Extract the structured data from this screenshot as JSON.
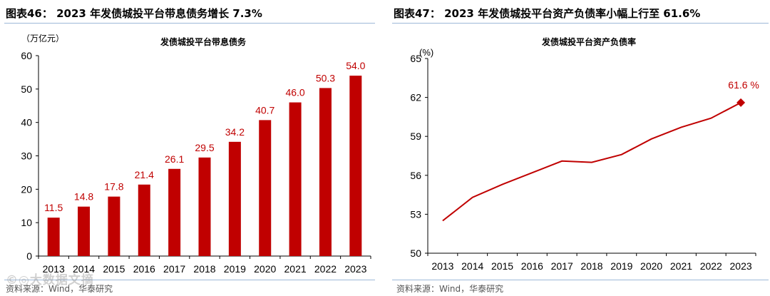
{
  "figures": {
    "left": {
      "header": "图表46： 2023 年发债城投平台带息债务增长 7.3%",
      "source": "资料来源：Wind，华泰研究"
    },
    "right": {
      "header": "图表47： 2023 年发债城投平台资产负债率小幅上行至 61.6%",
      "source": "资料来源：Wind，华泰研究"
    }
  },
  "watermark": "©◎大数据文摘",
  "colors": {
    "accent": "#c00000",
    "rule": "#9eb9d8",
    "axis": "#000000"
  },
  "chart_data": [
    {
      "type": "bar",
      "title": "发债城投平台带息债务",
      "unit_label": "（万亿元）",
      "xlabel": "",
      "ylabel": "万亿元",
      "categories": [
        "2013",
        "2014",
        "2015",
        "2016",
        "2017",
        "2018",
        "2019",
        "2020",
        "2021",
        "2022",
        "2023"
      ],
      "values": [
        11.5,
        14.8,
        17.8,
        21.4,
        26.1,
        29.5,
        34.2,
        40.7,
        46.0,
        50.3,
        54.0
      ],
      "value_labels": [
        "11.5",
        "14.8",
        "17.8",
        "21.4",
        "26.1",
        "29.5",
        "34.2",
        "40.7",
        "46.0",
        "50.3",
        "54.0"
      ],
      "ylim": [
        0,
        60
      ],
      "yticks": [
        "0",
        "10",
        "20",
        "30",
        "40",
        "50",
        "60"
      ],
      "grid": false
    },
    {
      "type": "line",
      "title": "发债城投平台资产负债率",
      "unit_label": "(%)",
      "xlabel": "",
      "ylabel": "%",
      "categories": [
        "2013",
        "2014",
        "2015",
        "2016",
        "2017",
        "2018",
        "2019",
        "2020",
        "2021",
        "2022",
        "2023"
      ],
      "values": [
        52.5,
        54.3,
        55.3,
        56.2,
        57.1,
        57.0,
        57.6,
        58.8,
        59.7,
        60.4,
        61.6
      ],
      "ylim": [
        50,
        65
      ],
      "yticks": [
        "50",
        "53",
        "56",
        "59",
        "62",
        "65"
      ],
      "annotation": "61.6 %",
      "grid": false
    }
  ]
}
